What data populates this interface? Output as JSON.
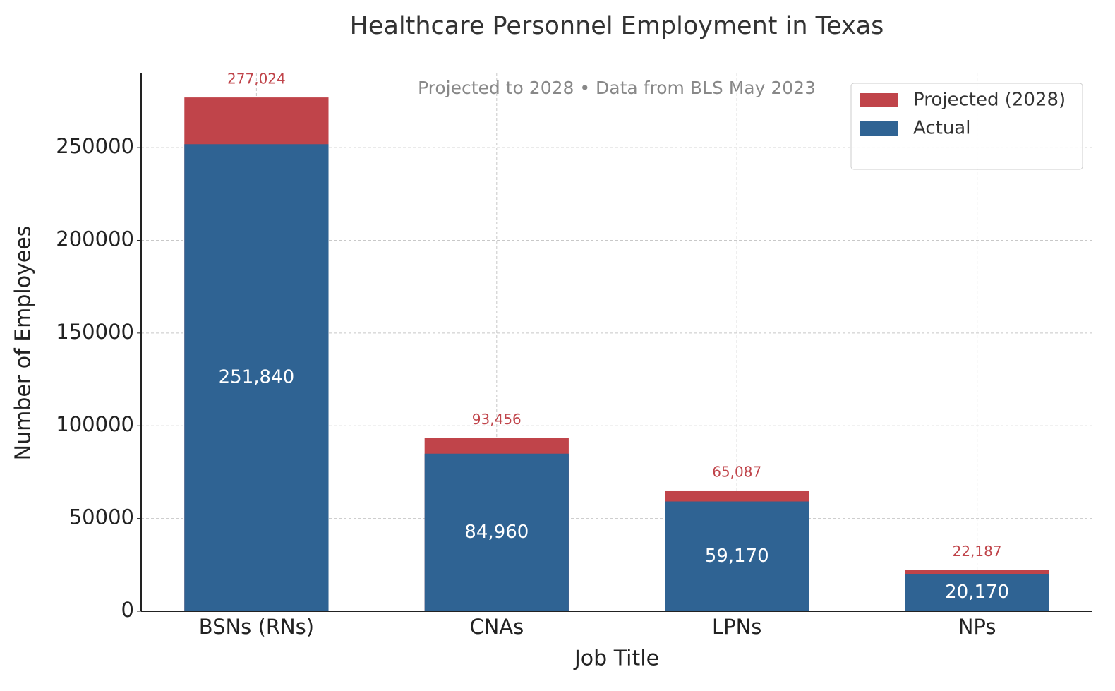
{
  "chart_data": {
    "type": "bar",
    "title": "Healthcare Personnel Employment in Texas",
    "subtitle": "Projected to 2028 • Data from BLS May 2023",
    "x_label": "Job Title",
    "y_label": "Number of Employees",
    "categories": [
      "BSNs (RNs)",
      "CNAs",
      "LPNs",
      "NPs"
    ],
    "series": [
      {
        "name": "Projected (2028)",
        "color": "#c0444a",
        "values": [
          277024,
          93456,
          65087,
          22187
        ],
        "value_labels": [
          "277,024",
          "93,456",
          "65,087",
          "22,187"
        ]
      },
      {
        "name": "Actual",
        "color": "#2f6393",
        "values": [
          251840,
          84960,
          59170,
          20170
        ],
        "value_labels": [
          "251,840",
          "84,960",
          "59,170",
          "20,170"
        ]
      }
    ],
    "ylim": [
      0,
      290000
    ],
    "yticks": [
      0,
      50000,
      100000,
      150000,
      200000,
      250000
    ],
    "grid": true,
    "legend": "upper right"
  }
}
